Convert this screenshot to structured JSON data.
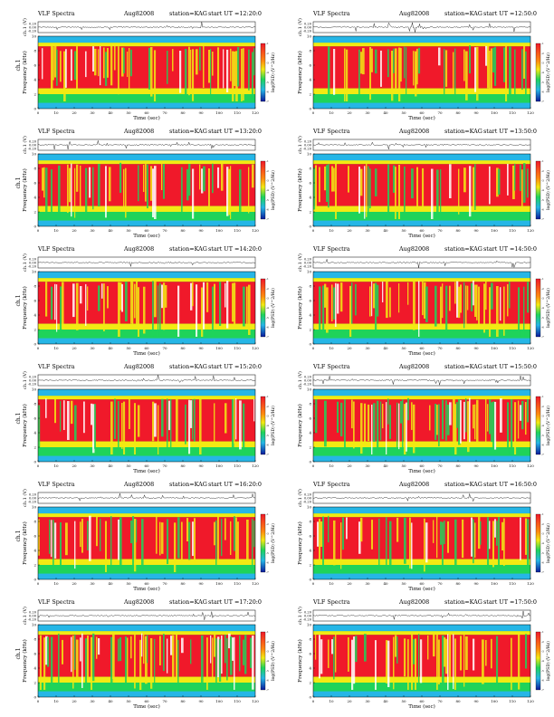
{
  "figure": {
    "title": "VLF Spectra",
    "date": "Aug82008",
    "station": "station=KAG",
    "start_prefix": "start UT ="
  },
  "labels": {
    "ch_axis": "ch.1 (V)",
    "freq_axis": "Frequency (kHz)",
    "ch_side": "ch.1",
    "time_axis": "Time (sec)",
    "colorbar": "log(PSD) (V^2/Hz)"
  },
  "colors": {
    "background_band": "#26b6e6",
    "low": "#1fd35a",
    "mid": "#f2ea13",
    "high": "#f0192a",
    "gap": "#ffffff",
    "frame": "#000000"
  },
  "panels": [
    {
      "start": "12:20:0",
      "show_ch_side": true
    },
    {
      "start": "12:50:0",
      "show_ch_side": false
    },
    {
      "start": "13:20:0",
      "show_ch_side": true
    },
    {
      "start": "13:50:0",
      "show_ch_side": false
    },
    {
      "start": "14:20:0",
      "show_ch_side": true
    },
    {
      "start": "14:50:0",
      "show_ch_side": false
    },
    {
      "start": "15:20:0",
      "show_ch_side": true
    },
    {
      "start": "15:50:0",
      "show_ch_side": false
    },
    {
      "start": "16:20:0",
      "show_ch_side": true
    },
    {
      "start": "16:50:0",
      "show_ch_side": false
    },
    {
      "start": "17:20:0",
      "show_ch_side": true
    },
    {
      "start": "17:50:0",
      "show_ch_side": false
    }
  ],
  "chart_data": {
    "type": "heatmap",
    "x_ticks": [
      "0",
      "10",
      "20",
      "30",
      "40",
      "50",
      "60",
      "70",
      "80",
      "90",
      "100",
      "110",
      "120"
    ],
    "xlim": [
      0,
      120
    ],
    "freq_ticks": [
      "0",
      "2",
      "4",
      "6",
      "8",
      "10"
    ],
    "ylim_freq": [
      0,
      10
    ],
    "ch_ticks": [
      "0.20",
      "0.00",
      "-0.20"
    ],
    "ylim_ch": [
      -0.3,
      0.3
    ],
    "colorbar_ticks": [
      "-1",
      "-2",
      "-3",
      "-4",
      "-5",
      "-6",
      "-7"
    ]
  }
}
